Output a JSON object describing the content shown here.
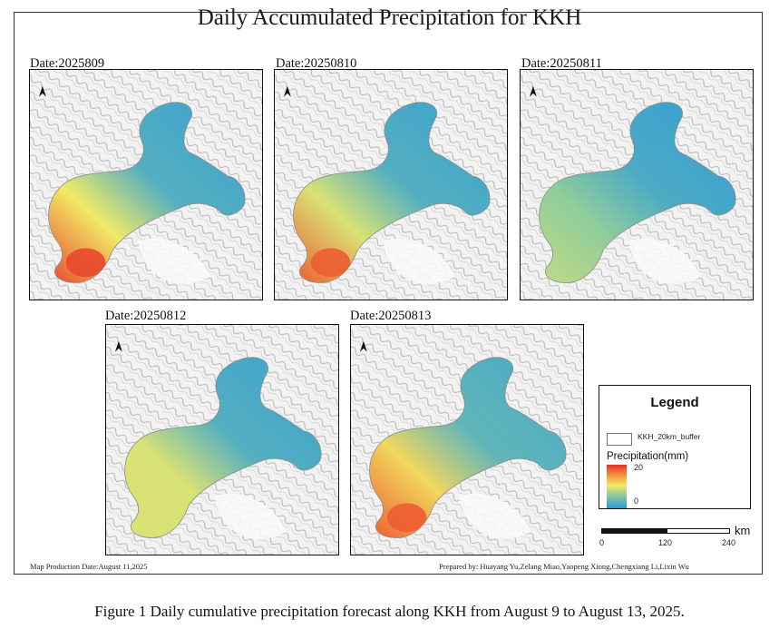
{
  "title": "Daily Accumulated Precipitation for KKH",
  "panels": [
    {
      "date": "Date:2025809",
      "rain": {
        "sw": 0.95,
        "mid": 0.55,
        "north": 0.05
      }
    },
    {
      "date": "Date:20250810",
      "rain": {
        "sw": 0.9,
        "mid": 0.5,
        "north": 0.05
      }
    },
    {
      "date": "Date:20250811",
      "rain": {
        "sw": 0.45,
        "mid": 0.35,
        "north": 0.02
      }
    },
    {
      "date": "Date:20250812",
      "rain": {
        "sw": 0.5,
        "mid": 0.5,
        "north": 0.05
      }
    },
    {
      "date": "Date:20250813",
      "rain": {
        "sw": 0.9,
        "mid": 0.6,
        "north": 0.1
      }
    }
  ],
  "legend": {
    "title": "Legend",
    "buffer_label": "KKH_20km_buffer",
    "precip_title": "Precipitation(mm)",
    "max_label": "20",
    "min_label": "0"
  },
  "scalebar": {
    "unit": "km",
    "ticks": [
      "0",
      "120",
      "240"
    ]
  },
  "footer": {
    "production_date": "Map Production Date:August 11,2025",
    "prepared_by": "Prepared by: Huayang Yu,Zelang Miao,Yaopeng Xiong,Chengxiang Li,Lixin Wu"
  },
  "caption": "Figure 1 Daily cumulative precipitation forecast along KKH from August 9 to August 13, 2025.",
  "colors": {
    "low": "#2f9ad6",
    "mid": "#f1ea66",
    "high": "#e4302a",
    "relief": "#d8d8d8"
  },
  "icons": {
    "north_arrow": "north-arrow-icon"
  }
}
